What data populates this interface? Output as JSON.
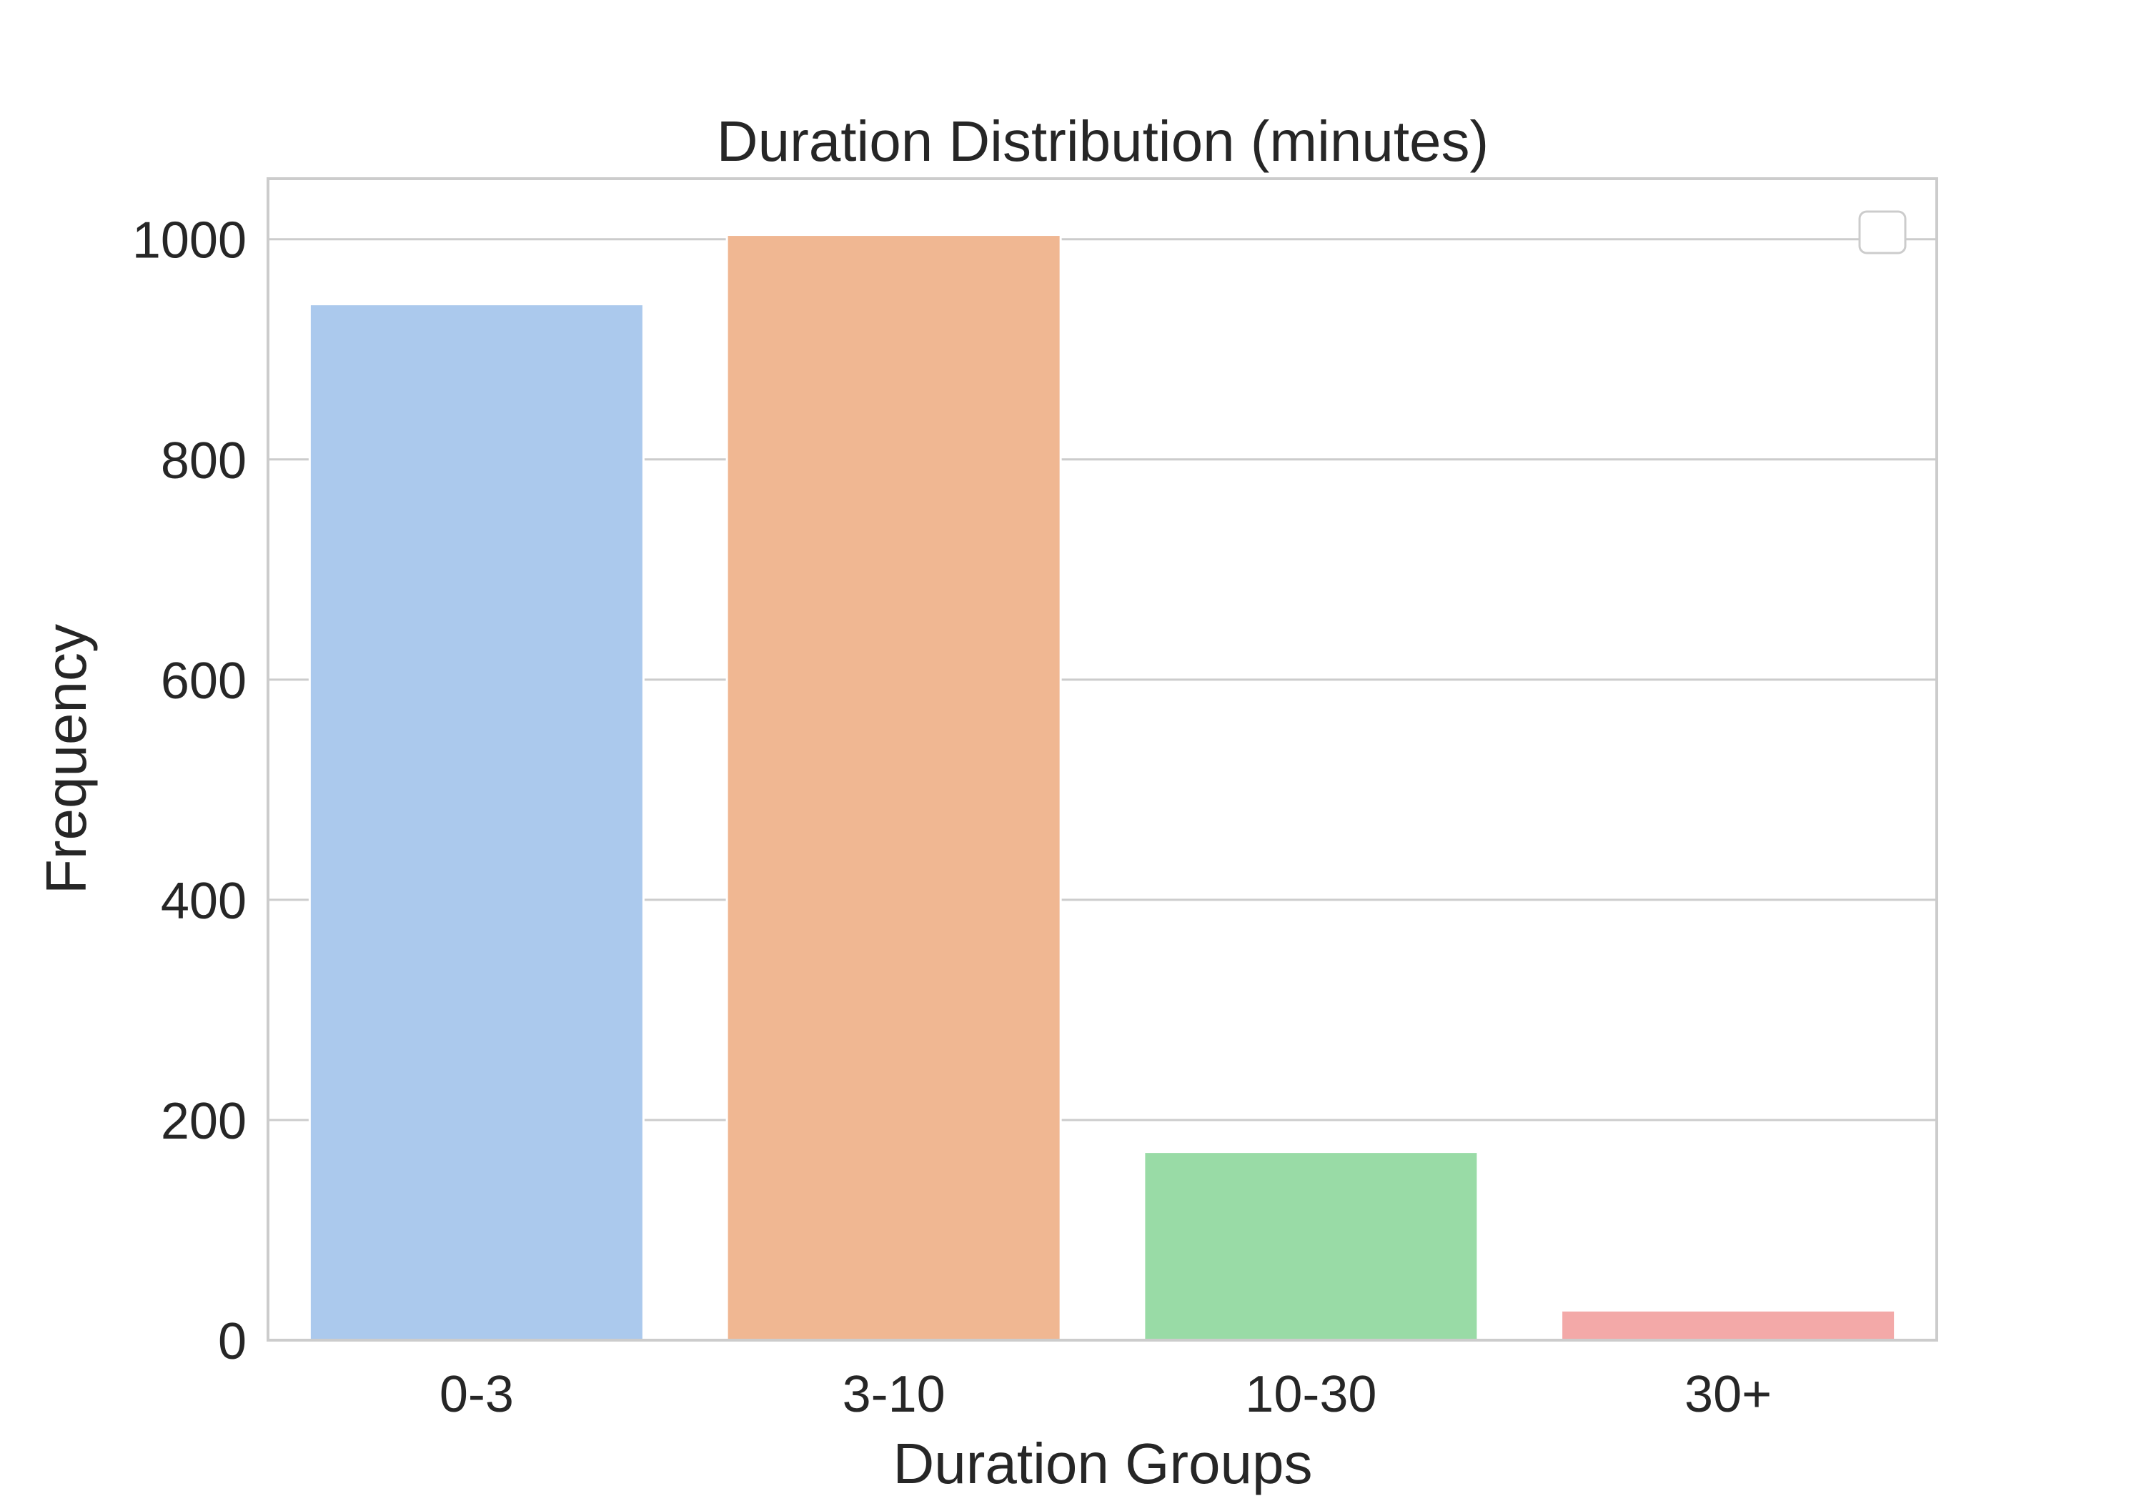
{
  "chart_data": {
    "type": "bar",
    "title": "Duration Distribution (minutes)",
    "xlabel": "Duration Groups",
    "ylabel": "Frequency",
    "categories": [
      "0-3",
      "3-10",
      "10-30",
      "30+"
    ],
    "values": [
      941,
      1004,
      171,
      27
    ],
    "colors": [
      "#abc9ed",
      "#f0b792",
      "#99dba6",
      "#f3a9a8"
    ],
    "ylim": [
      0,
      1055
    ],
    "yticks": [
      0,
      200,
      400,
      600,
      800,
      1000
    ],
    "grid": true,
    "legend": "top-right, empty"
  }
}
